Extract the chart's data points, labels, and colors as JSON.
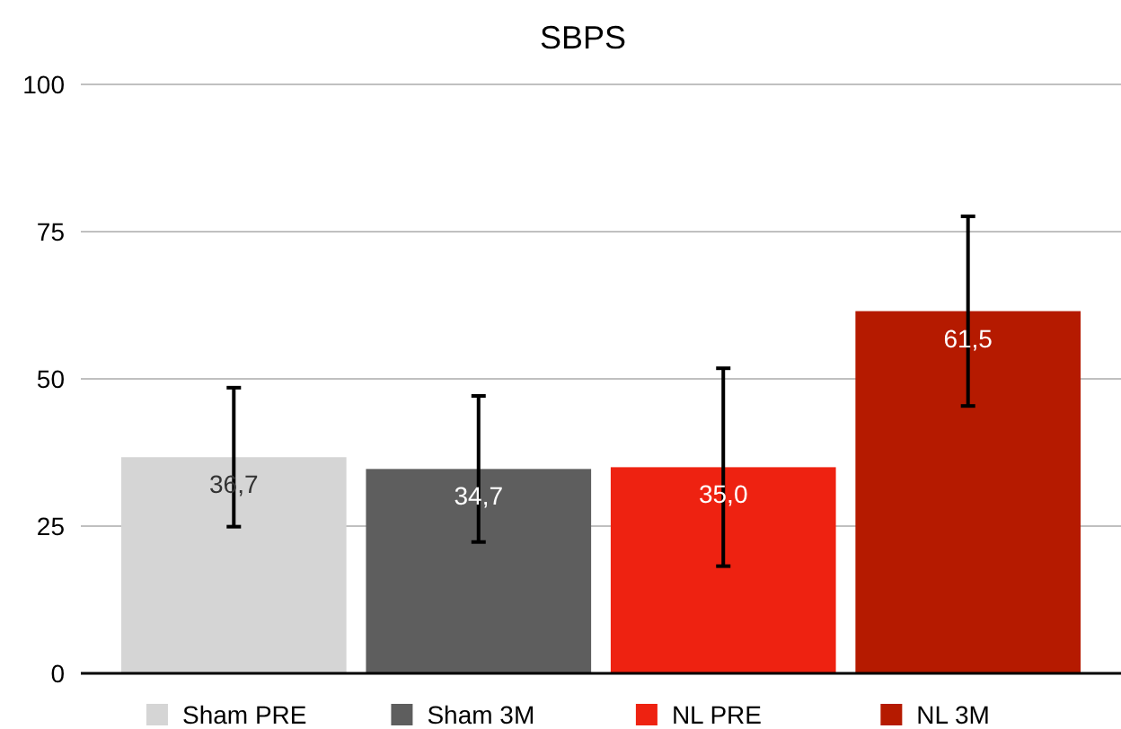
{
  "chart_data": {
    "type": "bar",
    "title": "SBPS",
    "categories": [
      null
    ],
    "series": [
      {
        "name": "Sham PRE",
        "color": "#d5d5d5",
        "values": [
          36.7
        ],
        "errors": [
          11.8
        ],
        "value_labels": [
          "36,7"
        ]
      },
      {
        "name": "Sham 3M",
        "color": "#5e5e5e",
        "values": [
          34.7
        ],
        "errors": [
          12.4
        ],
        "value_labels": [
          "34,7"
        ]
      },
      {
        "name": "NL PRE",
        "color": "#ee2211",
        "values": [
          35.0
        ],
        "errors": [
          16.8
        ],
        "value_labels": [
          "35,0"
        ]
      },
      {
        "name": "NL 3M",
        "color": "#b51a00",
        "values": [
          61.5
        ],
        "errors": [
          16.1
        ],
        "value_labels": [
          "61,5"
        ]
      }
    ],
    "ylim": [
      0,
      100
    ],
    "yticks": [
      0,
      25,
      50,
      75,
      100
    ],
    "grid": "y",
    "legend": "bottom",
    "tick_labels": "y"
  }
}
